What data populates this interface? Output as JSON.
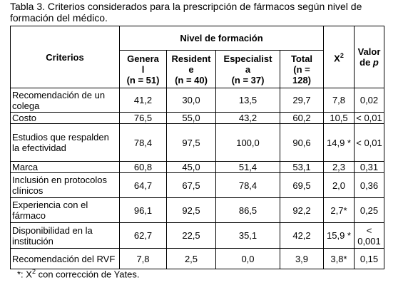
{
  "caption": "Tabla 3. Criterios considerados para la prescripción de fármacos según nivel de formación del médico.",
  "header": {
    "criterios": "Criterios",
    "nivel": "Nivel de formación",
    "col_general": "Genera l (n = 51)",
    "col_residente": "Resident e (n = 40)",
    "col_especialista": "Especialist a (n = 37)",
    "col_total": "Total (n = 128)",
    "chi2": "X2",
    "pvalue": "Valor de p"
  },
  "rows": [
    {
      "criterio": "Recomendación de un colega",
      "general": "41,2",
      "residente": "30,0",
      "especialista": "13,5",
      "total": "29,7",
      "chi2": "7,8",
      "p": "0,02"
    },
    {
      "criterio": "Costo",
      "general": "76,5",
      "residente": "55,0",
      "especialista": "43,2",
      "total": "60,2",
      "chi2": "10,5",
      "p": "< 0,01"
    },
    {
      "criterio": "Estudios que respalden la efectividad",
      "general": "78,4",
      "residente": "97,5",
      "especialista": "100,0",
      "total": "90,6",
      "chi2": "14,9 *",
      "p": "< 0,01"
    },
    {
      "criterio": "Marca",
      "general": "60,8",
      "residente": "45,0",
      "especialista": "51,4",
      "total": "53,1",
      "chi2": "2,3",
      "p": "0,31"
    },
    {
      "criterio": "Inclusión en protocolos clínicos",
      "general": "64,7",
      "residente": "67,5",
      "especialista": "78,4",
      "total": "69,5",
      "chi2": "2,0",
      "p": "0,36"
    },
    {
      "criterio": "Experiencia con el fármaco",
      "general": "96,1",
      "residente": "92,5",
      "especialista": "86,5",
      "total": "92,2",
      "chi2": "2,7*",
      "p": "0,25"
    },
    {
      "criterio": "Disponibilidad en la institución",
      "general": "62,7",
      "residente": "22,5",
      "especialista": "35,1",
      "total": "42,2",
      "chi2": "15,9 *",
      "p": "< 0,001"
    },
    {
      "criterio": "Recomendación del RVF",
      "general": "7,8",
      "residente": "2,5",
      "especialista": "0,0",
      "total": "3,9",
      "chi2": "3,8*",
      "p": "0,15"
    }
  ],
  "footnote": "*: X2 con corrección de Yates."
}
